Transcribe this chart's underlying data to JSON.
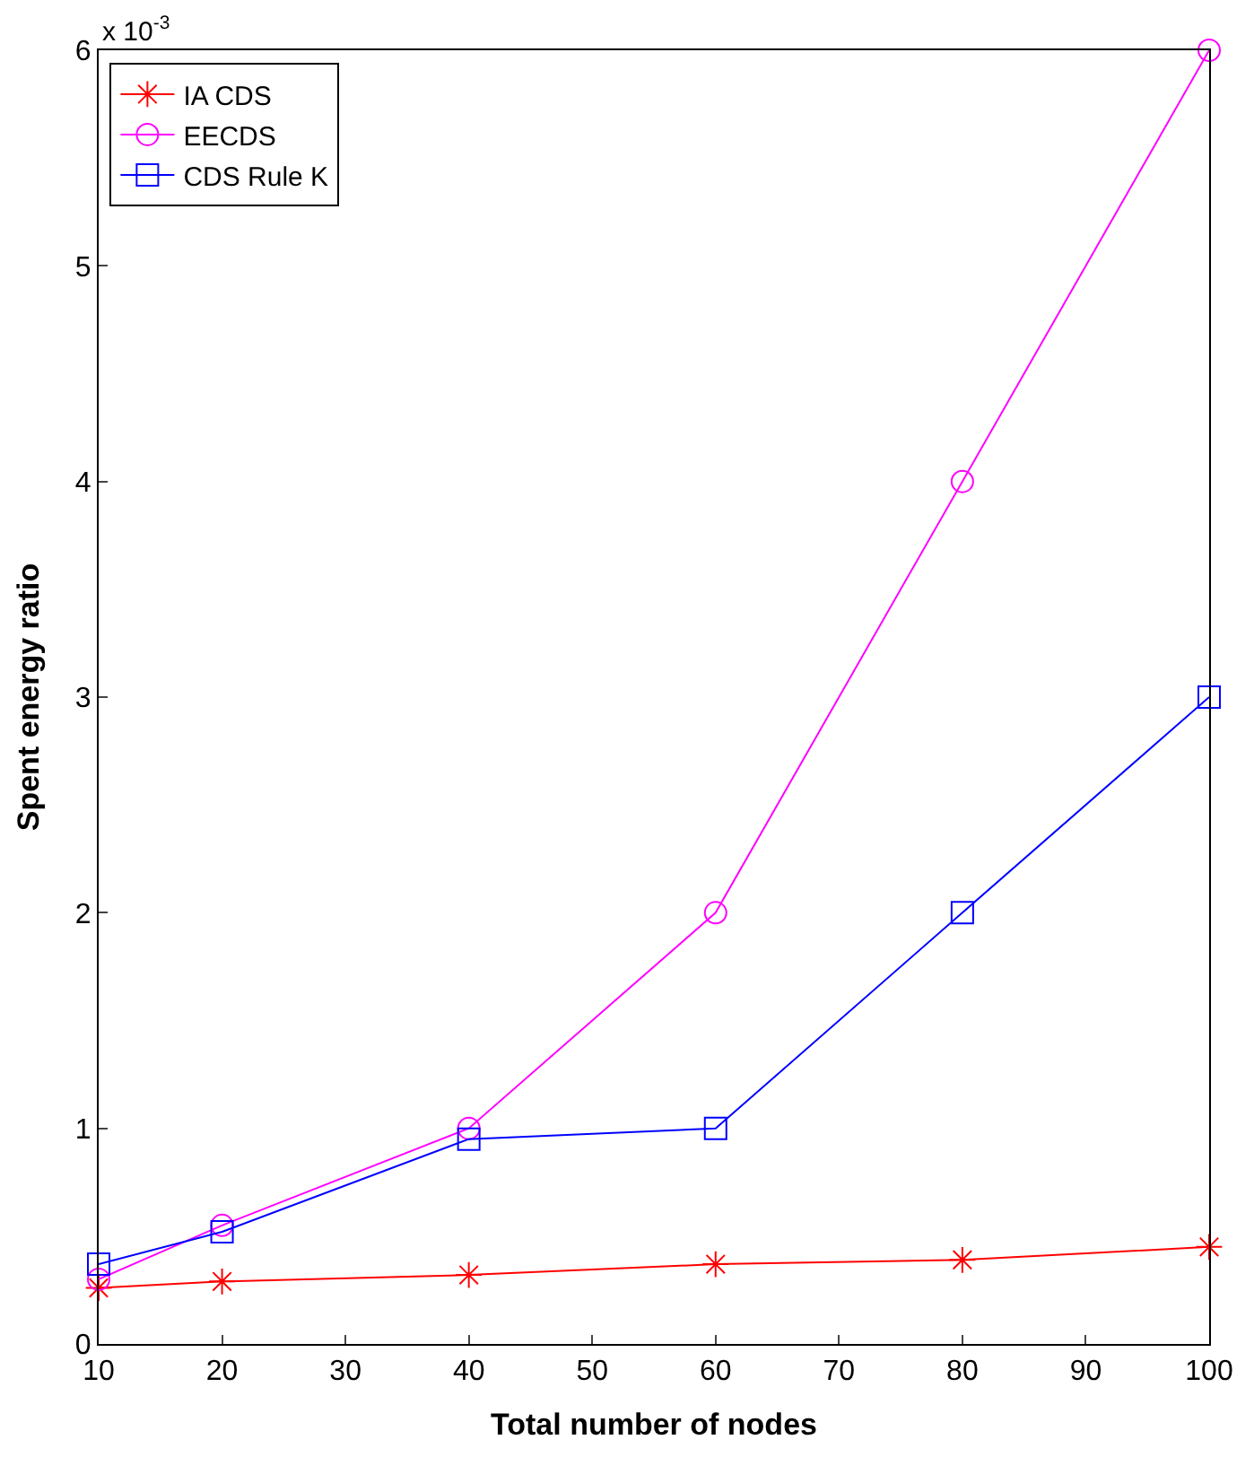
{
  "chart_data": {
    "type": "line",
    "xlabel": "Total number of nodes",
    "ylabel": "Spent energy ratio",
    "annotations": [
      "x 10$^{-3}$"
    ],
    "x": [
      10,
      20,
      40,
      60,
      80,
      100
    ],
    "xlim": [
      10,
      100
    ],
    "xticks": [
      10,
      20,
      30,
      40,
      50,
      60,
      70,
      80,
      90,
      100
    ],
    "ylim": [
      0,
      6
    ],
    "yticks": [
      0,
      1,
      2,
      3,
      4,
      5,
      6
    ],
    "legend": "top left",
    "series": [
      {
        "name": "IA CDS",
        "color": "#ff0000",
        "marker": "cross",
        "values": [
          0.26,
          0.29,
          0.32,
          0.37,
          0.39,
          0.45
        ]
      },
      {
        "name": "EECDS",
        "color": "#ff00ff",
        "marker": "circle",
        "values": [
          0.3,
          0.55,
          1.0,
          2.0,
          4.0,
          6.0
        ]
      },
      {
        "name": "CDS Rule K",
        "color": "#0000ff",
        "marker": "square",
        "values": [
          0.37,
          0.52,
          0.95,
          1.0,
          2.0,
          3.0
        ]
      }
    ]
  }
}
